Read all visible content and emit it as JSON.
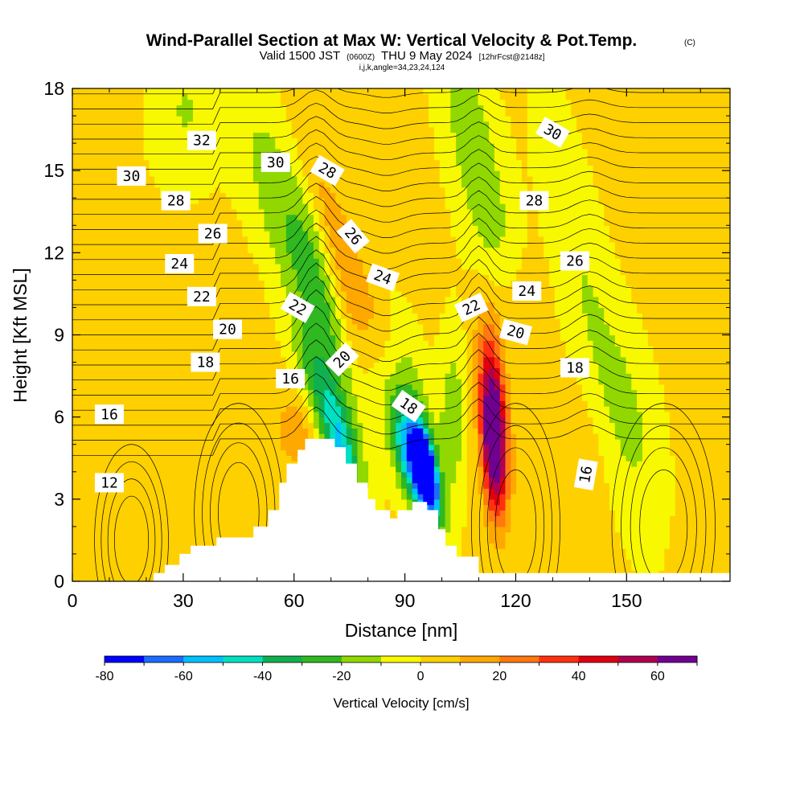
{
  "title": {
    "main": "Wind-Parallel Section at Max W: Vertical Velocity & Pot.Temp.",
    "main_tag": "(C)",
    "valid_prefix": "Valid 1500 JST",
    "valid_z": "(0600Z)",
    "valid_date": "THU 9 May 2024",
    "fcst": "[12hrFcst@2148z]",
    "indices": "i,j,k,angle=34,23,24,124"
  },
  "chart_data": {
    "type": "heatmap",
    "title": "Wind-Parallel Section at Max W: Vertical Velocity & Pot.Temp.",
    "xlabel": "Distance [nm]",
    "ylabel": "Height [Kft MSL]",
    "xlim": [
      0,
      178
    ],
    "ylim": [
      0,
      18
    ],
    "xticks": [
      0,
      30,
      60,
      90,
      120,
      150
    ],
    "yticks": [
      0,
      3,
      6,
      9,
      12,
      15,
      18
    ],
    "grid": false,
    "colorbar": {
      "title": "Vertical Velocity [cm/s]",
      "min": -80,
      "max": 70,
      "step": 10,
      "ticks": [
        -80,
        -60,
        -40,
        -20,
        0,
        20,
        40,
        60
      ],
      "colors": [
        "#0000ff",
        "#1a6cff",
        "#00c0ff",
        "#00e0c0",
        "#10b050",
        "#30b820",
        "#90d800",
        "#f8f800",
        "#ffd000",
        "#ffa800",
        "#ff7810",
        "#ff3010",
        "#e00010",
        "#b00050",
        "#700090"
      ]
    },
    "terrain": [
      [
        0,
        0
      ],
      [
        22,
        0
      ],
      [
        22,
        0.3
      ],
      [
        25,
        0.3
      ],
      [
        25,
        0.6
      ],
      [
        29,
        0.6
      ],
      [
        29,
        1
      ],
      [
        32,
        1
      ],
      [
        32,
        1.3
      ],
      [
        39,
        1.3
      ],
      [
        39,
        1.6
      ],
      [
        49,
        1.6
      ],
      [
        49,
        2
      ],
      [
        53,
        2
      ],
      [
        53,
        2.6
      ],
      [
        56,
        2.6
      ],
      [
        56,
        3.6
      ],
      [
        58,
        3.6
      ],
      [
        58,
        4.3
      ],
      [
        61,
        4.3
      ],
      [
        61,
        4.8
      ],
      [
        63,
        4.8
      ],
      [
        63,
        5.2
      ],
      [
        71,
        5.2
      ],
      [
        71,
        4.9
      ],
      [
        74,
        4.9
      ],
      [
        74,
        4.3
      ],
      [
        77,
        4.3
      ],
      [
        77,
        3.6
      ],
      [
        80,
        3.6
      ],
      [
        80,
        3
      ],
      [
        82,
        3
      ],
      [
        82,
        2.6
      ],
      [
        86,
        2.6
      ],
      [
        86,
        2.3
      ],
      [
        88,
        2.3
      ],
      [
        88,
        2.6
      ],
      [
        92,
        2.6
      ],
      [
        92,
        2.9
      ],
      [
        96,
        2.9
      ],
      [
        96,
        2.6
      ],
      [
        99,
        2.6
      ],
      [
        99,
        1.9
      ],
      [
        101,
        1.9
      ],
      [
        101,
        1.3
      ],
      [
        104,
        1.3
      ],
      [
        104,
        0.9
      ],
      [
        110,
        0.9
      ],
      [
        110,
        0.3
      ],
      [
        178,
        0.3
      ],
      [
        178,
        0
      ]
    ],
    "w_blobs": [
      {
        "x": 60,
        "y": 14,
        "sx": 8,
        "sy": 4,
        "w": -12,
        "slant": -0.55
      },
      {
        "x": 68,
        "y": 10,
        "sx": 6,
        "sy": 3,
        "w": -22,
        "slant": -0.5
      },
      {
        "x": 69,
        "y": 6.5,
        "sx": 3.5,
        "sy": 1.8,
        "w": -38,
        "slant": -0.4
      },
      {
        "x": 73,
        "y": 4.4,
        "sx": 3,
        "sy": 1.2,
        "w": -30,
        "slant": -0.2
      },
      {
        "x": 74,
        "y": 12,
        "sx": 3.5,
        "sy": 3,
        "w": 20,
        "slant": -0.45
      },
      {
        "x": 75,
        "y": 9.5,
        "sx": 3,
        "sy": 2,
        "w": 22,
        "slant": -0.3
      },
      {
        "x": 60,
        "y": 5.5,
        "sx": 4,
        "sy": 1,
        "w": 14,
        "slant": 0
      },
      {
        "x": 93,
        "y": 4.2,
        "sx": 3,
        "sy": 1.4,
        "w": -62,
        "slant": -0.3
      },
      {
        "x": 96,
        "y": 4.1,
        "sx": 1.8,
        "sy": 1.1,
        "w": -72,
        "slant": -0.2
      },
      {
        "x": 92,
        "y": 6,
        "sx": 4,
        "sy": 2,
        "w": -22,
        "slant": -0.2
      },
      {
        "x": 103,
        "y": 6,
        "sx": 2.5,
        "sy": 2.2,
        "w": -18,
        "slant": 0
      },
      {
        "x": 110,
        "y": 15,
        "sx": 5,
        "sy": 4,
        "w": -20,
        "slant": -0.25
      },
      {
        "x": 114,
        "y": 5,
        "sx": 2.2,
        "sy": 1.8,
        "w": 65,
        "slant": -0.05
      },
      {
        "x": 114,
        "y": 6.5,
        "sx": 2.6,
        "sy": 2.2,
        "w": 34,
        "slant": -0.1
      },
      {
        "x": 118,
        "y": 10,
        "sx": 5,
        "sy": 1.5,
        "w": 10,
        "slant": 0
      },
      {
        "x": 140,
        "y": 10,
        "sx": 5,
        "sy": 5,
        "w": -12,
        "slant": -0.25
      },
      {
        "x": 152,
        "y": 6,
        "sx": 5,
        "sy": 2.5,
        "w": -10,
        "slant": -0.2
      },
      {
        "x": 30,
        "y": 17,
        "sx": 6,
        "sy": 2,
        "w": -12,
        "slant": 0
      },
      {
        "x": 12,
        "y": 6,
        "sx": 6,
        "sy": 2,
        "w": 6,
        "slant": 0
      },
      {
        "x": 30,
        "y": 8,
        "sx": 8,
        "sy": 3,
        "w": 6,
        "slant": 0
      },
      {
        "x": 135,
        "y": 4,
        "sx": 6,
        "sy": 2,
        "w": 8,
        "slant": 0
      }
    ],
    "contour_labels": [
      {
        "x": 35,
        "y": 16.1,
        "text": "32",
        "angle": 0
      },
      {
        "x": 16,
        "y": 14.8,
        "text": "30",
        "angle": 0
      },
      {
        "x": 55,
        "y": 15.3,
        "text": "30",
        "angle": 0
      },
      {
        "x": 28,
        "y": 13.9,
        "text": "28",
        "angle": 0
      },
      {
        "x": 69,
        "y": 15.0,
        "text": "28",
        "angle": 30
      },
      {
        "x": 130,
        "y": 16.4,
        "text": "30",
        "angle": 30
      },
      {
        "x": 125,
        "y": 13.9,
        "text": "28",
        "angle": 0
      },
      {
        "x": 38,
        "y": 12.7,
        "text": "26",
        "angle": 0
      },
      {
        "x": 76,
        "y": 12.6,
        "text": "26",
        "angle": 50
      },
      {
        "x": 136,
        "y": 11.7,
        "text": "26",
        "angle": 0
      },
      {
        "x": 29,
        "y": 11.6,
        "text": "24",
        "angle": 0
      },
      {
        "x": 84,
        "y": 11.1,
        "text": "24",
        "angle": 20
      },
      {
        "x": 123,
        "y": 10.6,
        "text": "24",
        "angle": 0
      },
      {
        "x": 35,
        "y": 10.4,
        "text": "22",
        "angle": 0
      },
      {
        "x": 61,
        "y": 10.0,
        "text": "22",
        "angle": 30
      },
      {
        "x": 108,
        "y": 10.0,
        "text": "22",
        "angle": -25
      },
      {
        "x": 42,
        "y": 9.2,
        "text": "20",
        "angle": 0
      },
      {
        "x": 73,
        "y": 8.1,
        "text": "20",
        "angle": -45
      },
      {
        "x": 120,
        "y": 9.1,
        "text": "20",
        "angle": 15
      },
      {
        "x": 36,
        "y": 8.0,
        "text": "18",
        "angle": 0
      },
      {
        "x": 91,
        "y": 6.4,
        "text": "18",
        "angle": 35
      },
      {
        "x": 136,
        "y": 7.8,
        "text": "18",
        "angle": 0
      },
      {
        "x": 59,
        "y": 7.4,
        "text": "16",
        "angle": 0
      },
      {
        "x": 10,
        "y": 6.1,
        "text": "16",
        "angle": 0
      },
      {
        "x": 139,
        "y": 3.9,
        "text": "16",
        "angle": -80
      },
      {
        "x": 10,
        "y": 3.6,
        "text": "12",
        "angle": 0
      }
    ]
  }
}
